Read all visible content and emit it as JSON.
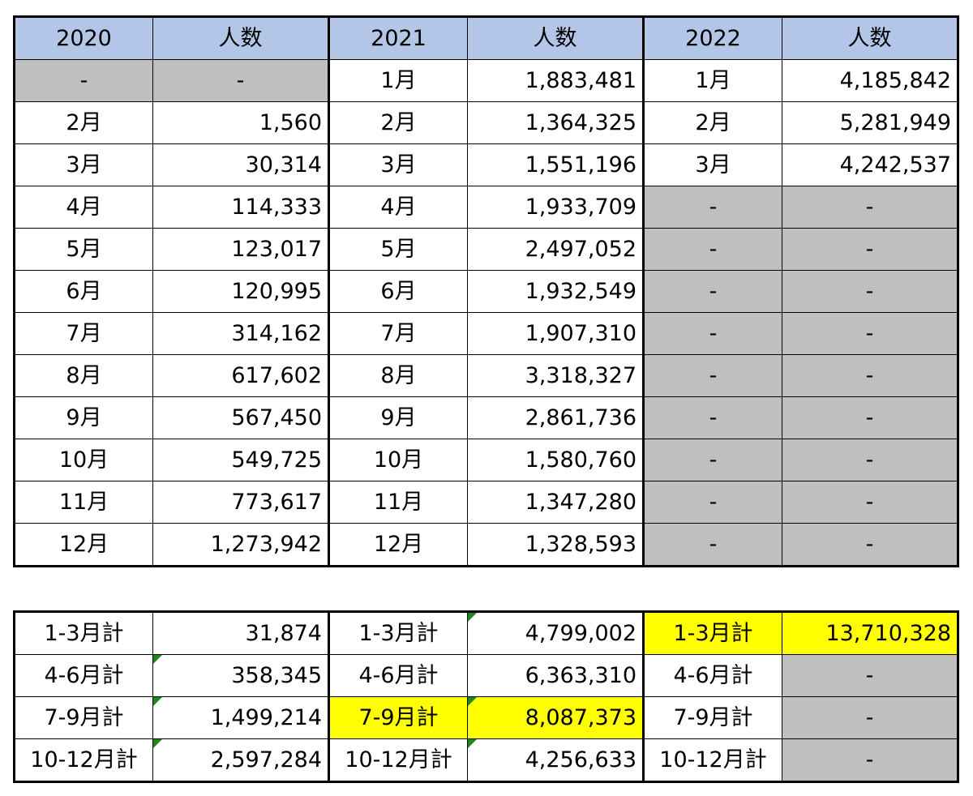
{
  "main": {
    "headers": [
      "2020",
      "人数",
      "2021",
      "人数",
      "2022",
      "人数"
    ],
    "rows": [
      [
        "-",
        "-",
        "1月",
        "1,883,481",
        "1月",
        "4,185,842"
      ],
      [
        "2月",
        "1,560",
        "2月",
        "1,364,325",
        "2月",
        "5,281,949"
      ],
      [
        "3月",
        "30,314",
        "3月",
        "1,551,196",
        "3月",
        "4,242,537"
      ],
      [
        "4月",
        "114,333",
        "4月",
        "1,933,709",
        "-",
        "-"
      ],
      [
        "5月",
        "123,017",
        "5月",
        "2,497,052",
        "-",
        "-"
      ],
      [
        "6月",
        "120,995",
        "6月",
        "1,932,549",
        "-",
        "-"
      ],
      [
        "7月",
        "314,162",
        "7月",
        "1,907,310",
        "-",
        "-"
      ],
      [
        "8月",
        "617,602",
        "8月",
        "3,318,327",
        "-",
        "-"
      ],
      [
        "9月",
        "567,450",
        "9月",
        "2,861,736",
        "-",
        "-"
      ],
      [
        "10月",
        "549,725",
        "10月",
        "1,580,760",
        "-",
        "-"
      ],
      [
        "11月",
        "773,617",
        "11月",
        "1,347,280",
        "-",
        "-"
      ],
      [
        "12月",
        "1,273,942",
        "12月",
        "1,328,593",
        "-",
        "-"
      ]
    ]
  },
  "summary": {
    "rows": [
      [
        "1-3月計",
        "31,874",
        "1-3月計",
        "4,799,002",
        "1-3月計",
        "13,710,328"
      ],
      [
        "4-6月計",
        "358,345",
        "4-6月計",
        "6,363,310",
        "4-6月計",
        "-"
      ],
      [
        "7-9月計",
        "1,499,214",
        "7-9月計",
        "8,087,373",
        "7-9月計",
        "-"
      ],
      [
        "10-12月計",
        "2,597,284",
        "10-12月計",
        "4,256,633",
        "10-12月計",
        "-"
      ]
    ]
  },
  "colors": {
    "header_fill": "#b4c6e7",
    "empty_fill": "#bfbfbf",
    "highlight_fill": "#ffff00",
    "error_marker": "#1e8a1e"
  }
}
